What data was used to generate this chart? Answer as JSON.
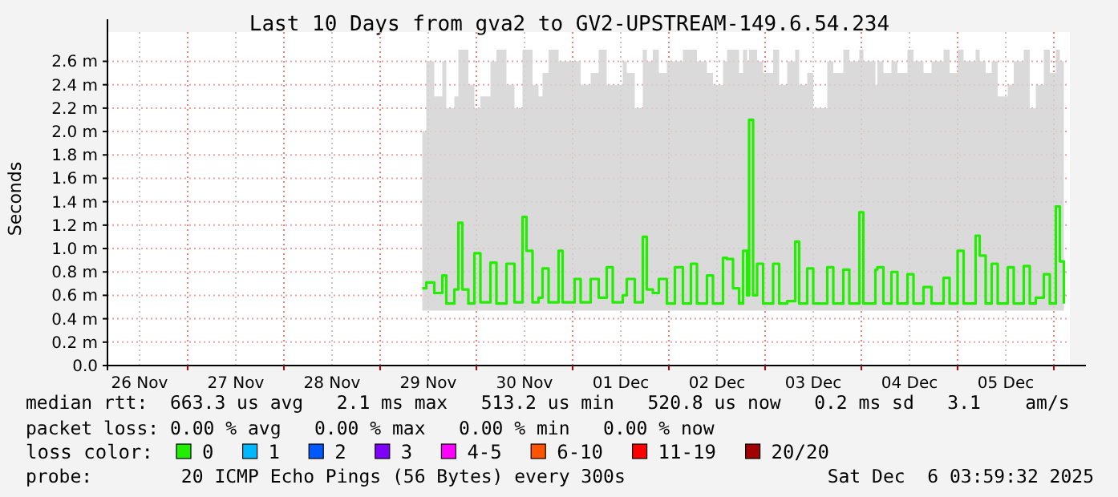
{
  "chart_data": {
    "type": "step",
    "title": "Last 10 Days from gva2 to GV2-UPSTREAM-149.6.54.234",
    "ylabel": "Seconds",
    "legend_title": "loss color:",
    "legend": "bottom",
    "grid": true,
    "xlim": [
      "2025-11-26T04:00",
      "2025-12-06T04:00"
    ],
    "xticks": [
      {
        "value": "2025-11-26T12:00",
        "label": "26 Nov"
      },
      {
        "value": "2025-11-27T00:00",
        "label": null
      },
      {
        "value": "2025-11-27T12:00",
        "label": "27 Nov"
      },
      {
        "value": "2025-11-28T00:00",
        "label": null
      },
      {
        "value": "2025-11-28T12:00",
        "label": "28 Nov"
      },
      {
        "value": "2025-11-29T00:00",
        "label": null
      },
      {
        "value": "2025-11-29T12:00",
        "label": "29 Nov"
      },
      {
        "value": "2025-11-30T00:00",
        "label": null
      },
      {
        "value": "2025-11-30T12:00",
        "label": "30 Nov"
      },
      {
        "value": "2025-12-01T00:00",
        "label": null
      },
      {
        "value": "2025-12-01T12:00",
        "label": "01 Dec"
      },
      {
        "value": "2025-12-02T00:00",
        "label": null
      },
      {
        "value": "2025-12-02T12:00",
        "label": "02 Dec"
      },
      {
        "value": "2025-12-03T00:00",
        "label": null
      },
      {
        "value": "2025-12-03T12:00",
        "label": "03 Dec"
      },
      {
        "value": "2025-12-04T00:00",
        "label": null
      },
      {
        "value": "2025-12-04T12:00",
        "label": "04 Dec"
      },
      {
        "value": "2025-12-05T00:00",
        "label": null
      },
      {
        "value": "2025-12-05T12:00",
        "label": "05 Dec"
      },
      {
        "value": "2025-12-06T00:00",
        "label": null
      }
    ],
    "ylim": [
      0,
      2.85
    ],
    "yticks": [
      {
        "value": 0,
        "label": "0.0"
      },
      {
        "value": 0.2,
        "label": "0.2 m"
      },
      {
        "value": 0.4,
        "label": "0.4 m"
      },
      {
        "value": 0.6,
        "label": "0.6 m"
      },
      {
        "value": 0.8,
        "label": "0.8 m"
      },
      {
        "value": 1.0,
        "label": "1.0 m"
      },
      {
        "value": 1.2,
        "label": "1.2 m"
      },
      {
        "value": 1.4,
        "label": "1.4 m"
      },
      {
        "value": 1.6,
        "label": "1.6 m"
      },
      {
        "value": 1.8,
        "label": "1.8 m"
      },
      {
        "value": 2.0,
        "label": "2.0 m"
      },
      {
        "value": 2.2,
        "label": "2.2 m"
      },
      {
        "value": 2.4,
        "label": "2.4 m"
      },
      {
        "value": 2.6,
        "label": "2.6 m"
      }
    ],
    "series": [
      {
        "name": "0",
        "color": "#22ee00",
        "x": [
          "2025-11-29T10:30",
          "2025-11-29T11:30",
          "2025-11-29T13:30",
          "2025-11-29T15:30",
          "2025-11-29T16:30",
          "2025-11-29T18:30",
          "2025-11-29T19:30",
          "2025-11-29T20:30",
          "2025-11-29T22:00",
          "2025-11-29T23:30",
          "2025-11-30T01:00",
          "2025-11-30T03:30",
          "2025-11-30T05:00",
          "2025-11-30T07:30",
          "2025-11-30T09:30",
          "2025-11-30T11:30",
          "2025-11-30T12:30",
          "2025-11-30T14:00",
          "2025-11-30T15:30",
          "2025-11-30T16:30",
          "2025-11-30T18:00",
          "2025-11-30T20:30",
          "2025-11-30T21:30",
          "2025-12-01T00:30",
          "2025-12-01T02:00",
          "2025-12-01T04:30",
          "2025-12-01T06:30",
          "2025-12-01T08:30",
          "2025-12-01T10:00",
          "2025-12-01T12:30",
          "2025-12-01T13:30",
          "2025-12-01T15:30",
          "2025-12-01T17:30",
          "2025-12-01T18:30",
          "2025-12-01T20:00",
          "2025-12-01T21:30",
          "2025-12-01T23:30",
          "2025-12-02T01:30",
          "2025-12-02T03:30",
          "2025-12-02T05:30",
          "2025-12-02T07:00",
          "2025-12-02T09:30",
          "2025-12-02T11:00",
          "2025-12-02T13:30",
          "2025-12-02T14:30",
          "2025-12-02T16:00",
          "2025-12-02T17:30",
          "2025-12-02T18:30",
          "2025-12-02T19:30",
          "2025-12-02T20:00",
          "2025-12-02T21:00",
          "2025-12-02T22:00",
          "2025-12-02T23:30",
          "2025-12-03T02:00",
          "2025-12-03T03:30",
          "2025-12-03T05:30",
          "2025-12-03T07:30",
          "2025-12-03T08:30",
          "2025-12-03T10:30",
          "2025-12-03T12:00",
          "2025-12-03T15:30",
          "2025-12-03T17:00",
          "2025-12-03T19:30",
          "2025-12-03T21:00",
          "2025-12-03T23:30",
          "2025-12-04T00:30",
          "2025-12-04T03:30",
          "2025-12-04T04:00",
          "2025-12-04T05:30",
          "2025-12-04T07:30",
          "2025-12-04T09:00",
          "2025-12-04T11:30",
          "2025-12-04T13:00",
          "2025-12-04T15:30",
          "2025-12-04T17:30",
          "2025-12-04T20:30",
          "2025-12-04T22:00",
          "2025-12-05T00:00",
          "2025-12-05T01:30",
          "2025-12-05T04:30",
          "2025-12-05T05:30",
          "2025-12-05T07:00",
          "2025-12-05T08:30",
          "2025-12-05T10:00",
          "2025-12-05T12:30",
          "2025-12-05T14:00",
          "2025-12-05T16:30",
          "2025-12-05T18:00",
          "2025-12-05T19:30",
          "2025-12-05T21:30",
          "2025-12-05T23:00",
          "2025-12-06T00:30",
          "2025-12-06T01:30",
          "2025-12-06T02:30"
        ],
        "values": [
          0.66,
          0.71,
          0.62,
          0.77,
          0.53,
          0.65,
          1.22,
          0.65,
          0.53,
          0.96,
          0.54,
          0.88,
          0.53,
          0.87,
          0.54,
          1.27,
          0.98,
          0.54,
          0.58,
          0.83,
          0.54,
          0.98,
          0.54,
          0.74,
          0.54,
          0.74,
          0.58,
          0.84,
          0.54,
          0.6,
          0.74,
          0.54,
          1.1,
          0.65,
          0.62,
          0.74,
          0.53,
          0.84,
          0.53,
          0.87,
          0.53,
          0.77,
          0.53,
          0.92,
          0.91,
          0.66,
          0.53,
          0.98,
          0.6,
          2.1,
          0.6,
          0.87,
          0.53,
          0.87,
          0.53,
          0.55,
          1.06,
          0.53,
          0.83,
          0.53,
          0.84,
          0.53,
          0.82,
          0.53,
          1.31,
          0.53,
          0.82,
          0.84,
          0.53,
          0.8,
          0.53,
          0.78,
          0.53,
          0.67,
          0.53,
          0.75,
          0.53,
          0.98,
          0.53,
          1.11,
          0.94,
          0.53,
          0.87,
          0.53,
          0.84,
          0.53,
          0.85,
          0.53,
          0.58,
          0.78,
          0.53,
          1.36,
          0.89,
          0.53
        ],
        "lower": [
          0.47,
          0.47,
          0.47,
          0.47,
          0.47,
          0.47,
          0.47,
          0.47,
          0.47,
          0.47,
          0.47,
          0.47,
          0.47,
          0.47,
          0.47,
          0.47,
          0.47,
          0.47,
          0.47,
          0.47,
          0.47,
          0.47,
          0.47,
          0.47,
          0.47,
          0.47,
          0.47,
          0.47,
          0.47,
          0.47,
          0.47,
          0.47,
          0.47,
          0.47,
          0.47,
          0.47,
          0.47,
          0.47,
          0.47,
          0.47,
          0.47,
          0.47,
          0.47,
          0.47,
          0.47,
          0.47,
          0.47,
          0.47,
          0.47,
          0.47,
          0.47,
          0.47,
          0.47,
          0.47,
          0.47,
          0.47,
          0.47,
          0.47,
          0.47,
          0.47,
          0.47,
          0.47,
          0.47,
          0.47,
          0.47,
          0.47,
          0.47,
          0.47,
          0.47,
          0.47,
          0.47,
          0.47,
          0.47,
          0.47,
          0.47,
          0.47,
          0.47,
          0.47,
          0.47,
          0.47,
          0.47,
          0.47,
          0.47,
          0.47,
          0.47,
          0.47,
          0.47,
          0.47,
          0.47,
          0.47,
          0.47,
          0.47,
          0.47,
          0.47
        ],
        "upper": [
          2.0,
          2.6,
          2.3,
          2.6,
          2.2,
          2.3,
          2.7,
          2.7,
          2.4,
          2.2,
          2.3,
          2.6,
          2.7,
          2.4,
          2.2,
          2.7,
          2.7,
          2.4,
          2.3,
          2.5,
          2.7,
          2.6,
          2.6,
          2.6,
          2.4,
          2.5,
          2.7,
          2.4,
          2.4,
          2.6,
          2.5,
          2.2,
          2.7,
          2.6,
          2.7,
          2.5,
          2.6,
          2.6,
          2.7,
          2.7,
          2.6,
          2.5,
          2.4,
          2.6,
          2.7,
          2.7,
          2.5,
          2.7,
          2.6,
          2.7,
          2.7,
          2.6,
          2.5,
          2.7,
          2.4,
          2.6,
          2.7,
          2.4,
          2.5,
          2.2,
          2.6,
          2.5,
          2.7,
          2.6,
          2.7,
          2.6,
          2.4,
          2.6,
          2.5,
          2.6,
          2.5,
          2.7,
          2.6,
          2.5,
          2.6,
          2.7,
          2.5,
          2.7,
          2.6,
          2.7,
          2.6,
          2.5,
          2.6,
          2.3,
          2.4,
          2.6,
          2.7,
          2.2,
          2.4,
          2.7,
          2.5,
          2.7,
          2.6,
          2.3
        ]
      },
      {
        "name": "1",
        "color": "#00b8ff"
      },
      {
        "name": "2",
        "color": "#0059ff"
      },
      {
        "name": "3",
        "color": "#7e00ff"
      },
      {
        "name": "4-5",
        "color": "#ff00ff"
      },
      {
        "name": "6-10",
        "color": "#ff5500"
      },
      {
        "name": "11-19",
        "color": "#ff0000"
      },
      {
        "name": "20/20",
        "color": "#a10000"
      }
    ],
    "annotations": [
      "median rtt:  663.3 us avg   2.1 ms max   513.2 us min   520.8 us now   0.2 ms sd   3.1    am/s",
      "packet loss: 0.00 % avg   0.00 % max   0.00 % min   0.00 % now",
      "probe:        20 ICMP Echo Pings (56 Bytes) every 300s",
      "Sat Dec  6 03:59:32 2025"
    ]
  }
}
